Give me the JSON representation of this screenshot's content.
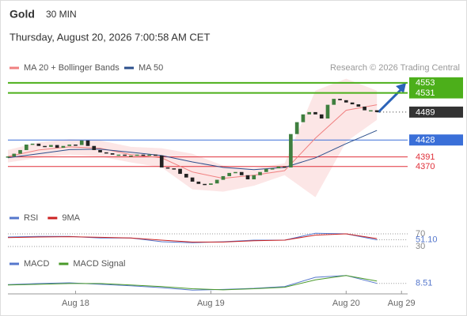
{
  "header": {
    "symbol": "Gold",
    "timeframe": "30 MIN",
    "timestamp": "Thursday, August 20, 2026 7:00:58 AM CET",
    "copyright": "Research © 2026 Trading Central"
  },
  "chart_data": [
    {
      "type": "candlestick",
      "xlim": [
        0,
        65
      ],
      "ylim": [
        4285,
        4570
      ],
      "up_color": "#3f7f3f",
      "down_color": "#222222",
      "values": [
        4392,
        4398,
        4406,
        4418,
        4420,
        4415,
        4413,
        4417,
        4411,
        4415,
        4418,
        4417,
        4427,
        4415,
        4406,
        4401,
        4399,
        4396,
        4396,
        4394,
        4394,
        4396,
        4394,
        4396,
        4394,
        4368,
        4366,
        4365,
        4354,
        4346,
        4337,
        4332,
        4330,
        4333,
        4341,
        4349,
        4356,
        4358,
        4351,
        4342,
        4351,
        4358,
        4365,
        4366,
        4370,
        4368,
        4441,
        4467,
        4484,
        4489,
        4484,
        4475,
        4505,
        4518,
        4515,
        4510,
        4506,
        4501,
        4493,
        4493,
        4489
      ],
      "series": [
        {
          "name": "MA 20 + Bollinger Bands",
          "color": "#f08080",
          "x": [
            0,
            5,
            10,
            15,
            20,
            25,
            30,
            35,
            40,
            45,
            50,
            55,
            60
          ],
          "values": [
            4392,
            4406,
            4413,
            4410,
            4396,
            4389,
            4358,
            4344,
            4351,
            4361,
            4432,
            4493,
            4505
          ],
          "upper": [
            4406,
            4423,
            4430,
            4427,
            4413,
            4410,
            4398,
            4372,
            4366,
            4377,
            4536,
            4562,
            4536
          ],
          "lower": [
            4379,
            4389,
            4396,
            4392,
            4379,
            4368,
            4320,
            4315,
            4328,
            4351,
            4303,
            4424,
            4472
          ]
        },
        {
          "name": "MA 50",
          "color": "#2c4f8c",
          "x": [
            0,
            5,
            10,
            15,
            20,
            25,
            30,
            35,
            40,
            45,
            50,
            55,
            60
          ],
          "values": [
            4389,
            4398,
            4407,
            4408,
            4401,
            4394,
            4380,
            4368,
            4363,
            4368,
            4389,
            4420,
            4449
          ]
        }
      ],
      "levels": [
        {
          "value": 4553,
          "color": "#4caf1a",
          "boxed": true
        },
        {
          "value": 4531,
          "color": "#4caf1a",
          "boxed": true
        },
        {
          "value": 4489,
          "color": "#333333",
          "boxed": true,
          "dotted": true
        },
        {
          "value": 4428,
          "color": "#3a6fd8",
          "boxed": true
        },
        {
          "value": 4391,
          "color": "#e0303a",
          "boxed": false
        },
        {
          "value": 4370,
          "color": "#e0303a",
          "boxed": false
        }
      ]
    },
    {
      "type": "line",
      "xlim": [
        0,
        65
      ],
      "ylim": [
        0,
        100
      ],
      "yticks": [
        30,
        70
      ],
      "current_value": 51.1,
      "current_label": "51.10",
      "series": [
        {
          "name": "RSI",
          "color": "#5577cc",
          "x": [
            0,
            5,
            10,
            15,
            20,
            25,
            30,
            35,
            40,
            45,
            50,
            55,
            60
          ],
          "values": [
            60,
            62,
            62,
            57,
            57,
            45,
            42,
            45,
            50,
            50,
            72,
            70,
            51.1
          ]
        },
        {
          "name": "9MA",
          "color": "#cc2222",
          "x": [
            0,
            5,
            10,
            15,
            20,
            25,
            30,
            35,
            40,
            45,
            50,
            55,
            60
          ],
          "values": [
            58,
            60,
            61,
            59,
            57,
            50,
            44,
            44,
            48,
            50,
            66,
            70,
            55
          ]
        }
      ]
    },
    {
      "type": "line",
      "xlim": [
        0,
        65
      ],
      "ylim": [
        -20,
        70
      ],
      "current_value": 8.51,
      "xticks": [
        {
          "value": 11,
          "label": "Aug 18"
        },
        {
          "value": 33,
          "label": "Aug 19"
        },
        {
          "value": 55,
          "label": "Aug 20"
        },
        {
          "value": 64,
          "label": "Aug 29"
        }
      ],
      "series": [
        {
          "name": "MACD",
          "color": "#5577cc",
          "x": [
            0,
            5,
            10,
            15,
            20,
            25,
            30,
            35,
            40,
            45,
            50,
            55,
            60
          ],
          "values": [
            5,
            8,
            10,
            6,
            2,
            -3,
            -10,
            -8,
            -5,
            0,
            25,
            30,
            8.51
          ]
        },
        {
          "name": "MACD Signal",
          "color": "#4a9a2a",
          "x": [
            0,
            5,
            10,
            15,
            20,
            25,
            30,
            35,
            40,
            45,
            50,
            55,
            60
          ],
          "values": [
            4,
            6,
            8,
            8,
            4,
            0,
            -6,
            -9,
            -6,
            -2,
            18,
            30,
            15
          ]
        }
      ]
    }
  ]
}
